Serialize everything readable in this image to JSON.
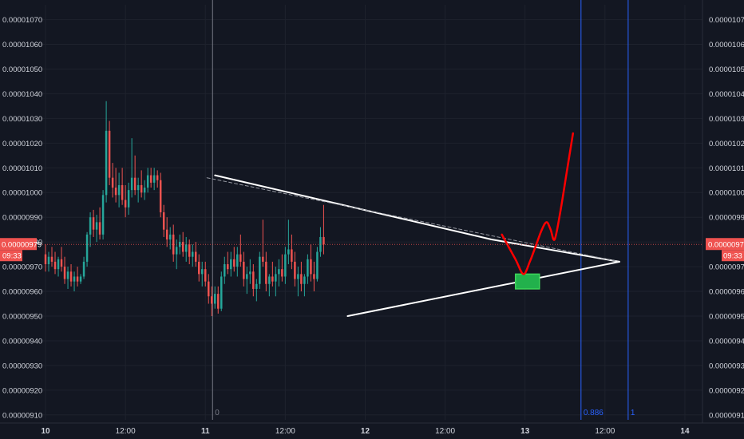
{
  "chart_data": {
    "type": "candlestick",
    "y_range": [
      9.08e-06,
      1.076e-05
    ],
    "y_ticks": [
      "0.00001070",
      "0.00001060",
      "0.00001050",
      "0.00001040",
      "0.00001030",
      "0.00001020",
      "0.00001010",
      "0.00001000",
      "0.00000990",
      "0.00000980",
      "0.00000970",
      "0.00000960",
      "0.00000950",
      "0.00000940",
      "0.00000930",
      "0.00000920",
      "0.00000910"
    ],
    "x_ticks": [
      {
        "label": "10",
        "x": 0.0,
        "bold": true
      },
      {
        "label": "12:00",
        "x": 1.0,
        "bold": false
      },
      {
        "label": "11",
        "x": 2.0,
        "bold": true
      },
      {
        "label": "12:00",
        "x": 3.0,
        "bold": false
      },
      {
        "label": "12",
        "x": 4.0,
        "bold": true
      },
      {
        "label": "12:00",
        "x": 5.0,
        "bold": false
      },
      {
        "label": "13",
        "x": 6.0,
        "bold": true
      },
      {
        "label": "12:00",
        "x": 7.0,
        "bold": false
      },
      {
        "label": "14",
        "x": 8.0,
        "bold": true
      }
    ],
    "x_range": [
      -0.04,
      8.22
    ],
    "current_price": {
      "label": "0.00000979",
      "countdown": "09:33",
      "value": 9.79e-06,
      "color": "#ef5350"
    },
    "up_color": "#26a69a",
    "down_color": "#ef5350",
    "candle_step": 0.04,
    "candles": [
      [
        9.75e-06,
        9.79e-06,
        9.68e-06,
        9.71e-06
      ],
      [
        9.71e-06,
        9.76e-06,
        9.68e-06,
        9.74e-06
      ],
      [
        9.74e-06,
        9.78e-06,
        9.7e-06,
        9.72e-06
      ],
      [
        9.72e-06,
        9.76e-06,
        9.67e-06,
        9.69e-06
      ],
      [
        9.69e-06,
        9.74e-06,
        9.66e-06,
        9.73e-06
      ],
      [
        9.73e-06,
        9.78e-06,
        9.68e-06,
        9.7e-06
      ],
      [
        9.7e-06,
        9.74e-06,
        9.63e-06,
        9.65e-06
      ],
      [
        9.65e-06,
        9.7e-06,
        9.61e-06,
        9.68e-06
      ],
      [
        9.68e-06,
        9.71e-06,
        9.62e-06,
        9.64e-06
      ],
      [
        9.64e-06,
        9.68e-06,
        9.6e-06,
        9.66e-06
      ],
      [
        9.66e-06,
        9.7e-06,
        9.62e-06,
        9.64e-06
      ],
      [
        9.64e-06,
        9.67e-06,
        9.63e-06,
        9.66e-06
      ],
      [
        9.66e-06,
        9.74e-06,
        9.65e-06,
        9.72e-06
      ],
      [
        9.72e-06,
        9.84e-06,
        9.7e-06,
        9.83e-06
      ],
      [
        9.83e-06,
        9.92e-06,
        9.78e-06,
        9.9e-06
      ],
      [
        9.9e-06,
        9.93e-06,
        9.82e-06,
        9.85e-06
      ],
      [
        9.85e-06,
        9.91e-06,
        9.8e-06,
        9.88e-06
      ],
      [
        9.88e-06,
        9.94e-06,
        9.81e-06,
        9.83e-06
      ],
      [
        9.83e-06,
        1.001e-05,
        9.81e-06,
        9.99e-06
      ],
      [
        9.99e-06,
        1.037e-05,
        9.96e-06,
        1.025e-05
      ],
      [
        1.025e-05,
        1.029e-05,
        1.003e-05,
        1.006e-05
      ],
      [
        1.006e-05,
        1.012e-05,
        9.98e-06,
        1.002e-05
      ],
      [
        1.002e-05,
        1.01e-05,
        9.96e-06,
        9.99e-06
      ],
      [
        9.99e-06,
        1.008e-05,
        9.94e-06,
        1.003e-05
      ],
      [
        1.003e-05,
        1.01e-05,
        9.95e-06,
        9.97e-06
      ],
      [
        9.97e-06,
        1.003e-05,
        9.9e-06,
        9.94e-06
      ],
      [
        9.94e-06,
        1.004e-05,
        9.91e-06,
        1.001e-05
      ],
      [
        1.001e-05,
        1.022e-05,
        9.98e-06,
        1.006e-05
      ],
      [
        1.006e-05,
        1.015e-05,
        9.99e-06,
        1.001e-05
      ],
      [
        1.001e-05,
        1.006e-05,
        9.96e-06,
        1.003e-05
      ],
      [
        1.003e-05,
        1.009e-05,
        9.98e-06,
        1e-05
      ],
      [
        1e-05,
        1.005e-05,
        9.97e-06,
        1.002e-05
      ],
      [
        1.002e-05,
        1.01e-05,
        1e-05,
        1.007e-05
      ],
      [
        1.007e-05,
        1.01e-05,
        1.002e-05,
        1.004e-05
      ],
      [
        1.004e-05,
        1.01e-05,
        1.001e-05,
        1.007e-05
      ],
      [
        1.007e-05,
        1.009e-05,
        1.002e-05,
        1.005e-05
      ],
      [
        1.005e-05,
        1.008e-05,
        9.9e-06,
        9.92e-06
      ],
      [
        9.92e-06,
        9.95e-06,
        9.82e-06,
        9.85e-06
      ],
      [
        9.85e-06,
        9.9e-06,
        9.78e-06,
        9.81e-06
      ],
      [
        9.81e-06,
        9.86e-06,
        9.77e-06,
        9.83e-06
      ],
      [
        9.83e-06,
        9.87e-06,
        9.72e-06,
        9.75e-06
      ],
      [
        9.75e-06,
        9.81e-06,
        9.69e-06,
        9.78e-06
      ],
      [
        9.78e-06,
        9.83e-06,
        9.75e-06,
        9.8e-06
      ],
      [
        9.8e-06,
        9.84e-06,
        9.74e-06,
        9.76e-06
      ],
      [
        9.76e-06,
        9.82e-06,
        9.72e-06,
        9.79e-06
      ],
      [
        9.79e-06,
        9.81e-06,
        9.71e-06,
        9.74e-06
      ],
      [
        9.74e-06,
        9.79e-06,
        9.7e-06,
        9.76e-06
      ],
      [
        9.76e-06,
        9.8e-06,
        9.7e-06,
        9.72e-06
      ],
      [
        9.72e-06,
        9.75e-06,
        9.64e-06,
        9.67e-06
      ],
      [
        9.67e-06,
        9.72e-06,
        9.62e-06,
        9.69e-06
      ],
      [
        9.69e-06,
        9.72e-06,
        9.62e-06,
        9.64e-06
      ],
      [
        9.64e-06,
        9.67e-06,
        9.55e-06,
        9.58e-06
      ],
      [
        9.58e-06,
        9.62e-06,
        9.5e-06,
        9.55e-06
      ],
      [
        9.55e-06,
        9.62e-06,
        9.53e-06,
        9.59e-06
      ],
      [
        9.59e-06,
        9.62e-06,
        9.51e-06,
        9.53e-06
      ],
      [
        9.53e-06,
        9.68e-06,
        9.52e-06,
        9.66e-06
      ],
      [
        9.66e-06,
        9.74e-06,
        9.63e-06,
        9.71e-06
      ],
      [
        9.71e-06,
        9.76e-06,
        9.67e-06,
        9.69e-06
      ],
      [
        9.69e-06,
        9.76e-06,
        9.66e-06,
        9.73e-06
      ],
      [
        9.73e-06,
        9.78e-06,
        9.68e-06,
        9.7e-06
      ],
      [
        9.7e-06,
        9.78e-06,
        9.66e-06,
        9.75e-06
      ],
      [
        9.75e-06,
        9.83e-06,
        9.7e-06,
        9.72e-06
      ],
      [
        9.72e-06,
        9.76e-06,
        9.62e-06,
        9.65e-06
      ],
      [
        9.65e-06,
        9.7e-06,
        9.59e-06,
        9.67e-06
      ],
      [
        9.67e-06,
        9.73e-06,
        9.63e-06,
        9.68e-06
      ],
      [
        9.68e-06,
        9.71e-06,
        9.58e-06,
        9.61e-06
      ],
      [
        9.61e-06,
        9.65e-06,
        9.56e-06,
        9.63e-06
      ],
      [
        9.63e-06,
        9.76e-06,
        9.61e-06,
        9.74e-06
      ],
      [
        9.74e-06,
        9.89e-06,
        9.7e-06,
        9.72e-06
      ],
      [
        9.72e-06,
        9.76e-06,
        9.6e-06,
        9.63e-06
      ],
      [
        9.63e-06,
        9.67e-06,
        9.58e-06,
        9.66e-06
      ],
      [
        9.66e-06,
        9.72e-06,
        9.62e-06,
        9.64e-06
      ],
      [
        9.64e-06,
        9.7e-06,
        9.58e-06,
        9.67e-06
      ],
      [
        9.67e-06,
        9.73e-06,
        9.62e-06,
        9.69e-06
      ],
      [
        9.69e-06,
        9.75e-06,
        9.64e-06,
        9.66e-06
      ],
      [
        9.66e-06,
        9.78e-06,
        9.63e-06,
        9.75e-06
      ],
      [
        9.75e-06,
        9.89e-06,
        9.71e-06,
        9.77e-06
      ],
      [
        9.77e-06,
        9.83e-06,
        9.69e-06,
        9.72e-06
      ],
      [
        9.72e-06,
        9.76e-06,
        9.62e-06,
        9.65e-06
      ],
      [
        9.65e-06,
        9.7e-06,
        9.58e-06,
        9.67e-06
      ],
      [
        9.67e-06,
        9.72e-06,
        9.6e-06,
        9.63e-06
      ],
      [
        9.63e-06,
        9.67e-06,
        9.58e-06,
        9.66e-06
      ],
      [
        9.66e-06,
        9.75e-06,
        9.63e-06,
        9.73e-06
      ],
      [
        9.73e-06,
        9.79e-06,
        9.64e-06,
        9.67e-06
      ],
      [
        9.67e-06,
        9.72e-06,
        9.6e-06,
        9.65e-06
      ],
      [
        9.65e-06,
        9.78e-06,
        9.64e-06,
        9.76e-06
      ],
      [
        9.76e-06,
        9.86e-06,
        9.74e-06,
        9.82e-06
      ],
      [
        9.82e-06,
        9.95e-06,
        9.75e-06,
        9.79e-06
      ]
    ],
    "lines": [
      {
        "name": "resistance-trendline",
        "color": "#ffffff",
        "width": 2,
        "dash": false,
        "points": [
          [
            2.12,
            1.007e-05
          ],
          [
            5.58,
            9.81e-06
          ],
          [
            7.18,
            9.72e-06
          ]
        ]
      },
      {
        "name": "dashed-reference-line",
        "color": "#9598a1",
        "width": 1,
        "dash": true,
        "points": [
          [
            2.02,
            1.006e-05
          ],
          [
            7.18,
            9.72e-06
          ]
        ]
      },
      {
        "name": "support-trendline",
        "color": "#ffffff",
        "width": 2,
        "dash": false,
        "points": [
          [
            3.78,
            9.5e-06
          ],
          [
            7.18,
            9.72e-06
          ]
        ]
      }
    ],
    "vertical_lines": [
      {
        "name": "fib-level-0",
        "x": 2.09,
        "color": "#787b86",
        "label": "0"
      },
      {
        "name": "fib-level-0886",
        "x": 6.7,
        "color": "#2962ff",
        "label": "0.886"
      },
      {
        "name": "fib-level-1",
        "x": 7.29,
        "color": "#2962ff",
        "label": "1"
      }
    ],
    "target_zone": {
      "x0": 5.88,
      "x1": 6.18,
      "y0": 9.61e-06,
      "y1": 9.67e-06,
      "fill": "#22b14c",
      "stroke": "#3dd65a"
    },
    "forecast_path": {
      "color": "#ff0000",
      "points": [
        [
          5.71,
          9.83e-06
        ],
        [
          5.88,
          9.73e-06
        ],
        [
          5.98,
          9.67e-06
        ],
        [
          6.06,
          9.72e-06
        ],
        [
          6.13,
          9.78e-06
        ],
        [
          6.21,
          9.85e-06
        ],
        [
          6.27,
          9.88e-06
        ],
        [
          6.32,
          9.85e-06
        ],
        [
          6.37,
          9.81e-06
        ],
        [
          6.44,
          9.92e-06
        ],
        [
          6.53,
          1.01e-05
        ],
        [
          6.6,
          1.024e-05
        ]
      ]
    }
  }
}
